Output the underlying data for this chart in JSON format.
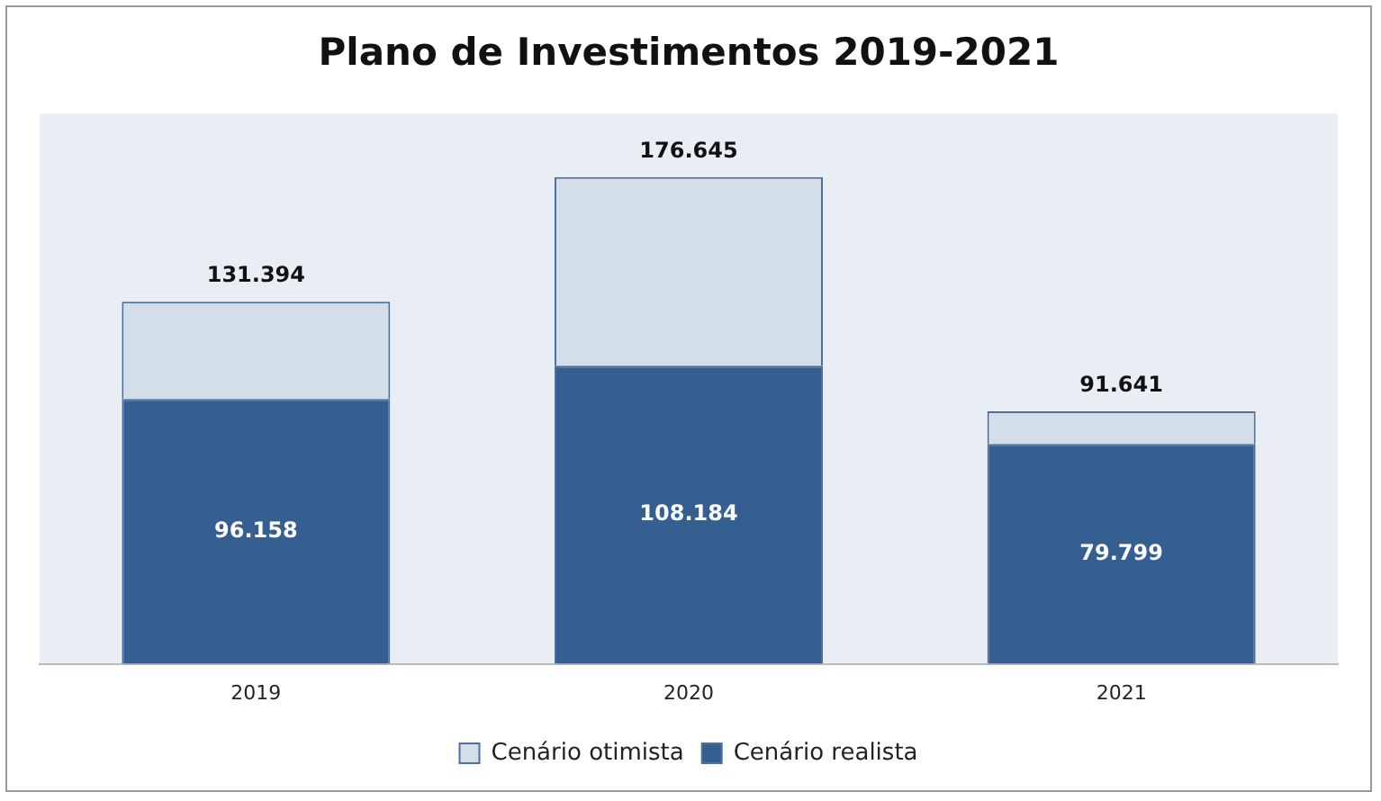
{
  "chart_data": {
    "type": "bar",
    "title": "Plano de Investimentos 2019-2021",
    "categories": [
      "2019",
      "2020",
      "2021"
    ],
    "stacked": true,
    "legend": "bottom",
    "tick_labels": "x",
    "grid": false,
    "series": [
      {
        "name": "Cenário realista",
        "color": "#365f91",
        "values": [
          96158,
          108184,
          79799
        ],
        "value_labels": [
          "96.158",
          "108.184",
          "79.799"
        ]
      },
      {
        "name": "Cenário otimista",
        "color": "#d3deeb",
        "values": [
          35236,
          68461,
          11842
        ]
      }
    ],
    "totals": [
      "131.394",
      "176.645",
      "91.641"
    ]
  }
}
